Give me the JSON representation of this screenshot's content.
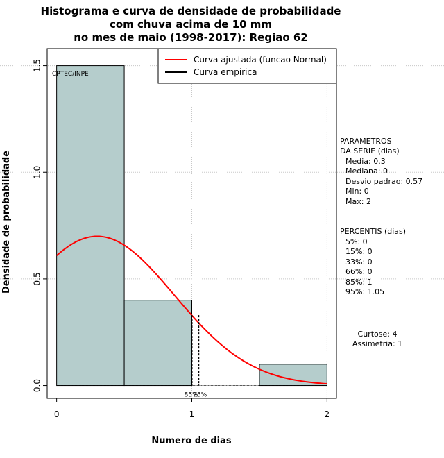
{
  "chart_data": {
    "type": "histogram",
    "title": [
      "Histograma e curva de densidade de probabilidade",
      "com chuva acima de 10 mm",
      "no mes de maio (1998-2017): Regiao 62"
    ],
    "xlabel": "Numero de dias",
    "ylabel": "Densidade de probabilidade",
    "xlim": [
      -0.07,
      2.07
    ],
    "ylim": [
      -0.06,
      1.58
    ],
    "xticks": [
      0,
      1,
      2
    ],
    "xtick_labels": [
      "0",
      "1",
      "2"
    ],
    "yticks": [
      0.0,
      0.5,
      1.0,
      1.5
    ],
    "ytick_labels": [
      "0.0",
      "0.5",
      "1.0",
      "1.5"
    ],
    "grid": true,
    "bins": [
      {
        "from": 0.0,
        "to": 0.5,
        "density": 1.5
      },
      {
        "from": 0.5,
        "to": 1.0,
        "density": 0.4
      },
      {
        "from": 1.5,
        "to": 2.0,
        "density": 0.1
      }
    ],
    "normal_fit": {
      "mean": 0.3,
      "sd": 0.57,
      "x_from": 0,
      "x_to": 2,
      "color": "#ff0000"
    },
    "percentile_lines": [
      {
        "x": 1.0,
        "top": 0.33,
        "label": "85%"
      },
      {
        "x": 1.05,
        "top": 0.33,
        "label": "95%"
      }
    ],
    "legend": {
      "position": "top-right",
      "entries": [
        {
          "label": "Curva ajustada (funcao Normal)",
          "color": "#ff0000"
        },
        {
          "label": "Curva empirica",
          "color": "#000000"
        }
      ]
    },
    "annotation": "CPTEC/INPE",
    "bar_fill": "#b5cdcc"
  },
  "stats": {
    "params_heading": [
      "PARAMETROS",
      "DA SERIE (dias)"
    ],
    "params": [
      "Media: 0.3",
      "Mediana: 0",
      "Desvio padrao: 0.57",
      "Min: 0",
      "Max: 2"
    ],
    "pct_heading": "PERCENTIS (dias)",
    "percentiles": [
      "5%: 0",
      "15%: 0",
      "33%: 0",
      "66%: 0",
      "85%: 1",
      "95%: 1.05"
    ],
    "moments": [
      "Curtose: 4",
      "Assimetria: 1"
    ]
  }
}
